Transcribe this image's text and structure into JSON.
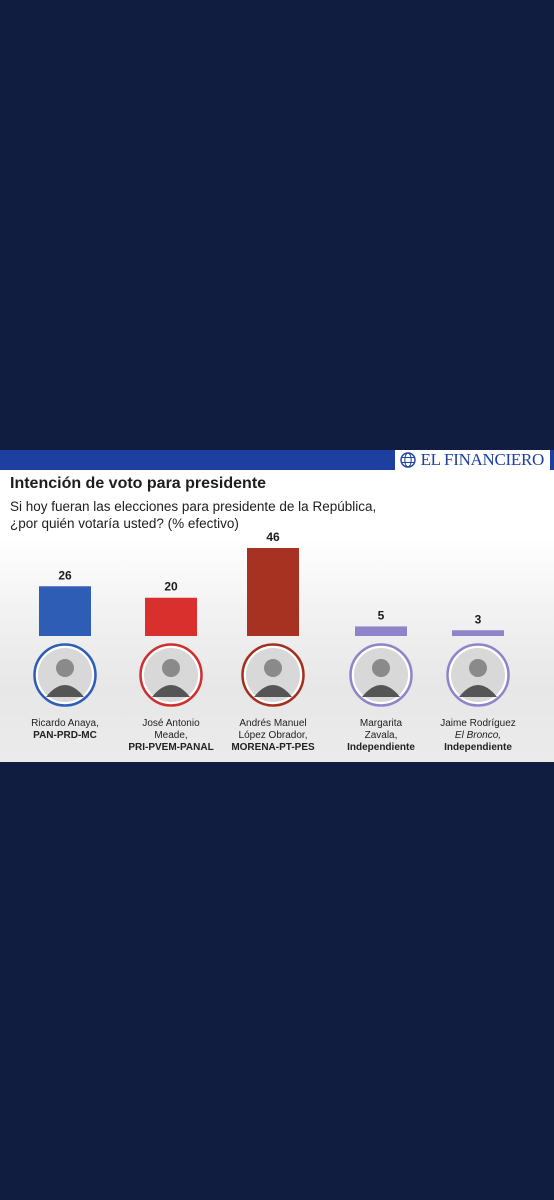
{
  "brand": "EL FINANCIERO",
  "colors": {
    "background": "#101c40",
    "header_bar": "#1c3fa0",
    "ring_pan": "#2d5db5",
    "ring_pri": "#d12f2f",
    "ring_morena": "#a3301e",
    "ring_independiente": "#8f84c9"
  },
  "chart_data": {
    "type": "bar",
    "title": "Intención de voto para presidente",
    "subtitle_lines": [
      "Si hoy fueran las elecciones para presidente de la República,",
      "¿por quién votaría usted? (% efectivo)"
    ],
    "categories": [
      "Ricardo Anaya",
      "José Antonio Meade",
      "Andrés Manuel López Obrador",
      "Margarita Zavala",
      "Jaime Rodríguez El Bronco"
    ],
    "values": [
      26,
      20,
      46,
      5,
      3
    ],
    "value_labels": [
      "26",
      "20",
      "46",
      "5",
      "3"
    ],
    "bar_colors": [
      "#2d5db5",
      "#d9302d",
      "#a83222",
      "#8f84c9",
      "#8f84c9"
    ],
    "ylim": [
      0,
      46
    ],
    "grid": false,
    "legend": "none"
  },
  "candidates": [
    {
      "line1": "Ricardo Anaya,",
      "line2": "",
      "line3": "",
      "party": "PAN-PRD-MC",
      "icon": "avatar-icon"
    },
    {
      "line1": "José Antonio",
      "line2": "Meade,",
      "line3": "",
      "party": "PRI-PVEM-PANAL",
      "icon": "avatar-icon"
    },
    {
      "line1": "Andrés Manuel",
      "line2": "López Obrador,",
      "line3": "",
      "party": "MORENA-PT-PES",
      "icon": "avatar-icon"
    },
    {
      "line1": "Margarita",
      "line2": "Zavala,",
      "line3": "",
      "party": "Independiente",
      "icon": "avatar-icon"
    },
    {
      "line1": "Jaime Rodríguez",
      "line2": "",
      "line3": "El Bronco,",
      "party": "Independiente",
      "icon": "avatar-icon"
    }
  ]
}
